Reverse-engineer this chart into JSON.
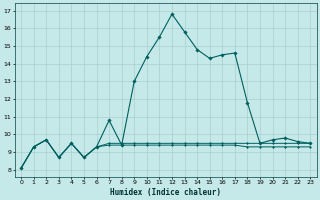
{
  "xlabel": "Humidex (Indice chaleur)",
  "background_color": "#c5e8e8",
  "grid_color": "#aacfcf",
  "line_color": "#006060",
  "x_ticks": [
    0,
    1,
    2,
    3,
    4,
    5,
    6,
    7,
    8,
    9,
    10,
    11,
    12,
    13,
    14,
    15,
    16,
    17,
    18,
    19,
    20,
    21,
    22,
    23
  ],
  "y_ticks": [
    8,
    9,
    10,
    11,
    12,
    13,
    14,
    15,
    16,
    17
  ],
  "ylim": [
    7.6,
    17.4
  ],
  "xlim": [
    -0.5,
    23.5
  ],
  "series_main": {
    "x": [
      0,
      1,
      2,
      3,
      4,
      5,
      6,
      7,
      8,
      9,
      10,
      11,
      12,
      13,
      14,
      15,
      16,
      17,
      18,
      19,
      20,
      21,
      22,
      23
    ],
    "y": [
      8.1,
      9.3,
      9.7,
      8.7,
      9.5,
      8.7,
      9.3,
      10.8,
      9.4,
      13.0,
      14.4,
      15.5,
      16.8,
      15.8,
      14.8,
      14.3,
      14.5,
      14.6,
      11.8,
      9.5,
      9.7,
      9.8,
      9.6,
      9.5
    ]
  },
  "series_flat1": {
    "x": [
      0,
      1,
      2,
      3,
      4,
      5,
      6,
      7,
      8,
      9,
      10,
      11,
      12,
      13,
      14,
      15,
      16,
      17,
      18,
      19,
      20,
      21,
      22,
      23
    ],
    "y": [
      8.1,
      9.3,
      9.7,
      8.7,
      9.5,
      8.7,
      9.3,
      9.5,
      9.5,
      9.5,
      9.5,
      9.5,
      9.5,
      9.5,
      9.5,
      9.5,
      9.5,
      9.5,
      9.5,
      9.5,
      9.5,
      9.5,
      9.5,
      9.5
    ]
  },
  "series_flat2": {
    "x": [
      0,
      1,
      2,
      3,
      4,
      5,
      6,
      7,
      8,
      9,
      10,
      11,
      12,
      13,
      14,
      15,
      16,
      17,
      18,
      19,
      20,
      21,
      22,
      23
    ],
    "y": [
      8.1,
      9.3,
      9.7,
      8.7,
      9.5,
      8.7,
      9.3,
      9.4,
      9.4,
      9.4,
      9.4,
      9.4,
      9.4,
      9.4,
      9.4,
      9.4,
      9.4,
      9.4,
      9.3,
      9.3,
      9.3,
      9.3,
      9.3,
      9.3
    ]
  }
}
